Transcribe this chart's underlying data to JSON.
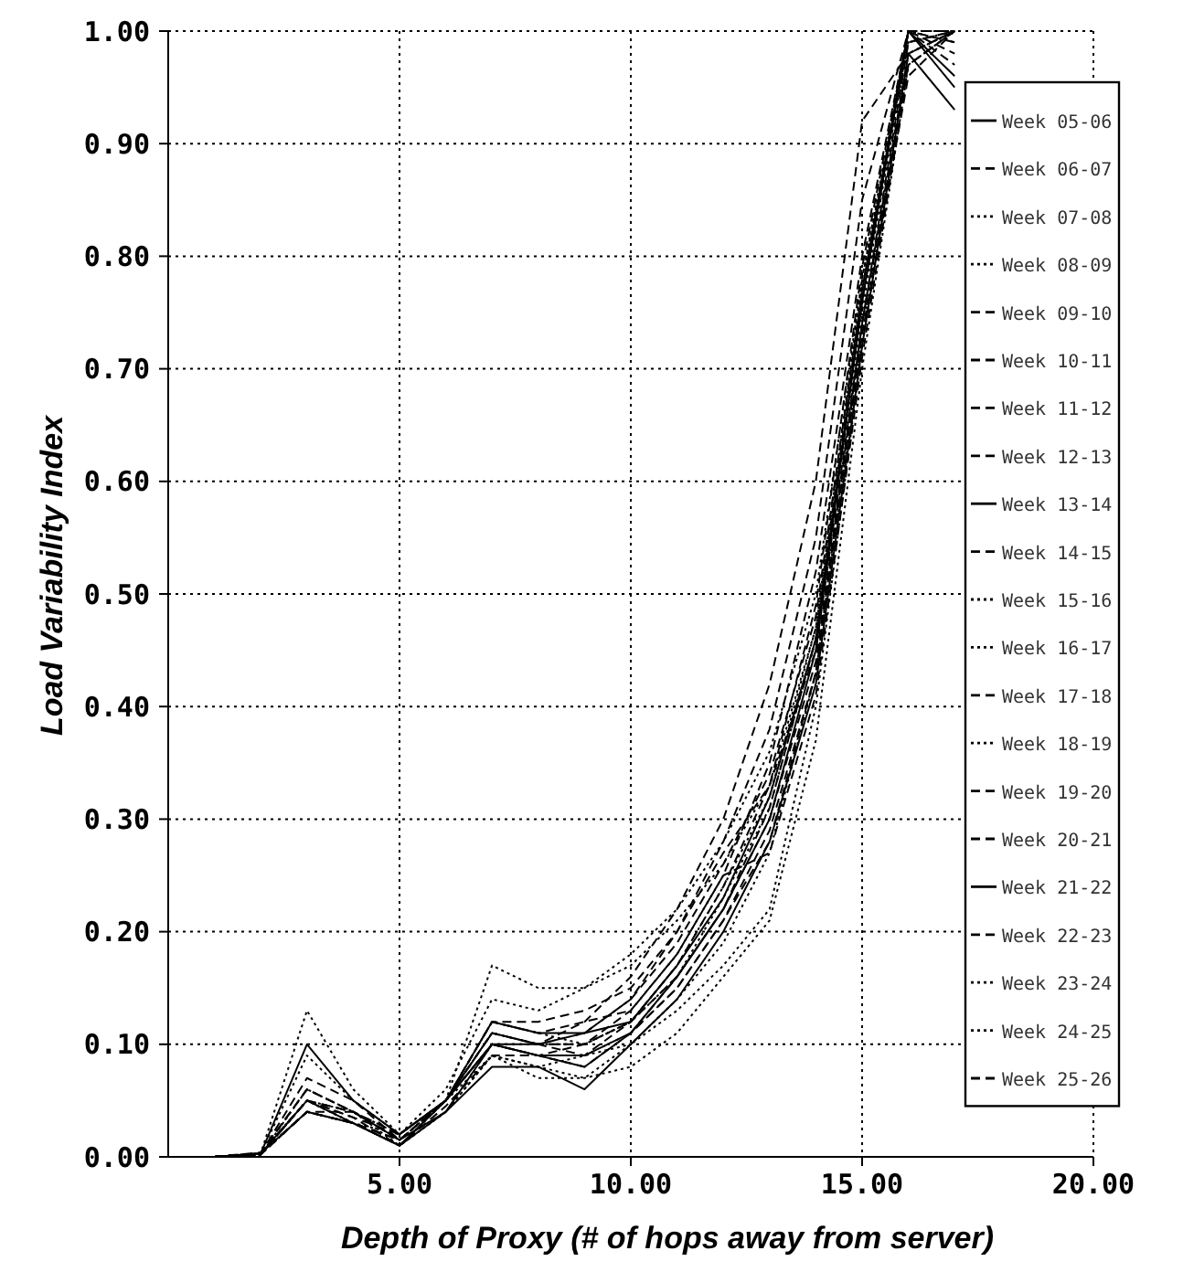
{
  "chart_data": {
    "type": "line",
    "xlabel": "Depth of Proxy (# of hops away from server)",
    "ylabel": "Load Variability Index",
    "x": [
      1,
      2,
      3,
      4,
      5,
      6,
      7,
      8,
      9,
      10,
      11,
      12,
      13,
      14,
      15,
      16,
      17
    ],
    "xlim": [
      0,
      20
    ],
    "xticks": [
      {
        "value": 5,
        "label": "5.00"
      },
      {
        "value": 10,
        "label": "10.00"
      },
      {
        "value": 15,
        "label": "15.00"
      },
      {
        "value": 20,
        "label": "20.00"
      }
    ],
    "ylim": [
      0,
      1
    ],
    "yticks": [
      {
        "value": 0,
        "label": "0.00"
      },
      {
        "value": 0.1,
        "label": "0.10"
      },
      {
        "value": 0.2,
        "label": "0.20"
      },
      {
        "value": 0.3,
        "label": "0.30"
      },
      {
        "value": 0.4,
        "label": "0.40"
      },
      {
        "value": 0.5,
        "label": "0.50"
      },
      {
        "value": 0.6,
        "label": "0.60"
      },
      {
        "value": 0.7,
        "label": "0.70"
      },
      {
        "value": 0.8,
        "label": "0.80"
      },
      {
        "value": 0.9,
        "label": "0.90"
      },
      {
        "value": 1,
        "label": "1.00"
      }
    ],
    "grid": true,
    "legend": "right",
    "marker": "none",
    "series": [
      {
        "name": "Week 05-06",
        "color": "#000000",
        "line_style": "solid",
        "values": [
          0,
          0.003,
          0.1,
          0.05,
          0.02,
          0.05,
          0.12,
          0.11,
          0.11,
          0.12,
          0.17,
          0.23,
          0.32,
          0.46,
          0.76,
          1.0,
          0.96
        ]
      },
      {
        "name": "Week 06-07",
        "color": "#000000",
        "line_style": "dashed",
        "values": [
          0,
          0.004,
          0.06,
          0.04,
          0.015,
          0.04,
          0.1,
          0.09,
          0.1,
          0.13,
          0.18,
          0.25,
          0.35,
          0.52,
          0.8,
          1.0,
          1.0
        ]
      },
      {
        "name": "Week 07-08",
        "color": "#000000",
        "line_style": "dotted",
        "values": [
          0,
          0.003,
          0.13,
          0.06,
          0.02,
          0.05,
          0.17,
          0.15,
          0.15,
          0.18,
          0.22,
          0.28,
          0.36,
          0.5,
          0.78,
          1.0,
          0.99
        ]
      },
      {
        "name": "Week 08-09",
        "color": "#000000",
        "line_style": "dotted",
        "values": [
          0,
          0.002,
          0.05,
          0.03,
          0.01,
          0.04,
          0.09,
          0.08,
          0.07,
          0.1,
          0.13,
          0.17,
          0.22,
          0.4,
          0.72,
          0.98,
          1.0
        ]
      },
      {
        "name": "Week 09-10",
        "color": "#000000",
        "line_style": "dashed",
        "values": [
          0,
          0.003,
          0.04,
          0.03,
          0.015,
          0.05,
          0.11,
          0.1,
          0.09,
          0.12,
          0.16,
          0.22,
          0.3,
          0.44,
          0.74,
          0.97,
          1.0
        ]
      },
      {
        "name": "Week 10-11",
        "color": "#000000",
        "line_style": "dashed",
        "values": [
          0,
          0.003,
          0.05,
          0.035,
          0.02,
          0.05,
          0.1,
          0.1,
          0.11,
          0.14,
          0.19,
          0.26,
          0.34,
          0.48,
          0.77,
          1.0,
          0.98
        ]
      },
      {
        "name": "Week 11-12",
        "color": "#000000",
        "line_style": "dashed",
        "values": [
          0,
          0.002,
          0.04,
          0.03,
          0.01,
          0.045,
          0.09,
          0.09,
          0.08,
          0.11,
          0.15,
          0.21,
          0.29,
          0.43,
          0.73,
          0.96,
          1.0
        ]
      },
      {
        "name": "Week 12-13",
        "color": "#000000",
        "line_style": "dashed",
        "values": [
          0,
          0.003,
          0.05,
          0.04,
          0.02,
          0.05,
          0.11,
          0.1,
          0.12,
          0.16,
          0.22,
          0.3,
          0.42,
          0.6,
          0.92,
          0.98,
          1.0
        ]
      },
      {
        "name": "Week 13-14",
        "color": "#000000",
        "line_style": "solid",
        "values": [
          0,
          0.003,
          0.04,
          0.03,
          0.01,
          0.04,
          0.08,
          0.08,
          0.06,
          0.1,
          0.14,
          0.2,
          0.28,
          0.42,
          0.72,
          0.98,
          0.93
        ]
      },
      {
        "name": "Week 14-15",
        "color": "#000000",
        "line_style": "dashed",
        "values": [
          0,
          0.003,
          0.07,
          0.05,
          0.015,
          0.05,
          0.12,
          0.12,
          0.13,
          0.15,
          0.2,
          0.27,
          0.33,
          0.45,
          0.74,
          0.99,
          1.0
        ]
      },
      {
        "name": "Week 15-16",
        "color": "#000000",
        "line_style": "dotted",
        "values": [
          0,
          0.002,
          0.06,
          0.04,
          0.01,
          0.05,
          0.09,
          0.07,
          0.07,
          0.08,
          0.11,
          0.16,
          0.21,
          0.37,
          0.7,
          0.97,
          1.0
        ]
      },
      {
        "name": "Week 16-17",
        "color": "#000000",
        "line_style": "dotted",
        "values": [
          0,
          0.003,
          0.05,
          0.04,
          0.02,
          0.06,
          0.14,
          0.13,
          0.15,
          0.17,
          0.21,
          0.26,
          0.33,
          0.47,
          0.76,
          0.99,
          1.0
        ]
      },
      {
        "name": "Week 17-18",
        "color": "#000000",
        "line_style": "dashed",
        "values": [
          0,
          0.003,
          0.04,
          0.03,
          0.015,
          0.05,
          0.1,
          0.09,
          0.09,
          0.11,
          0.16,
          0.22,
          0.31,
          0.46,
          0.77,
          1.0,
          0.99
        ]
      },
      {
        "name": "Week 18-19",
        "color": "#000000",
        "line_style": "dotted",
        "values": [
          0,
          0.003,
          0.05,
          0.03,
          0.02,
          0.05,
          0.11,
          0.1,
          0.1,
          0.12,
          0.17,
          0.24,
          0.32,
          0.47,
          0.78,
          0.99,
          1.0
        ]
      },
      {
        "name": "Week 19-20",
        "color": "#000000",
        "line_style": "dashed",
        "values": [
          0,
          0.003,
          0.04,
          0.04,
          0.015,
          0.04,
          0.1,
          0.09,
          0.09,
          0.11,
          0.15,
          0.21,
          0.28,
          0.43,
          0.74,
          0.98,
          1.0
        ]
      },
      {
        "name": "Week 20-21",
        "color": "#000000",
        "line_style": "dashed",
        "values": [
          0,
          0.002,
          0.05,
          0.035,
          0.01,
          0.05,
          0.11,
          0.1,
          0.11,
          0.14,
          0.2,
          0.28,
          0.38,
          0.55,
          0.85,
          1.0,
          1.0
        ]
      },
      {
        "name": "Week 21-22",
        "color": "#000000",
        "line_style": "solid",
        "values": [
          0,
          0.003,
          0.05,
          0.03,
          0.01,
          0.05,
          0.1,
          0.09,
          0.08,
          0.11,
          0.16,
          0.22,
          0.3,
          0.45,
          0.76,
          1.0,
          0.95
        ]
      },
      {
        "name": "Week 22-23",
        "color": "#000000",
        "line_style": "dashed",
        "values": [
          0,
          0.003,
          0.06,
          0.04,
          0.015,
          0.05,
          0.12,
          0.11,
          0.12,
          0.13,
          0.18,
          0.25,
          0.27,
          0.41,
          0.71,
          0.97,
          1.0
        ]
      },
      {
        "name": "Week 23-24",
        "color": "#000000",
        "line_style": "dotted",
        "values": [
          0,
          0.002,
          0.04,
          0.03,
          0.01,
          0.04,
          0.09,
          0.08,
          0.09,
          0.1,
          0.14,
          0.19,
          0.27,
          0.43,
          0.73,
          0.98,
          1.0
        ]
      },
      {
        "name": "Week 24-25",
        "color": "#000000",
        "line_style": "dotted",
        "values": [
          0,
          0.003,
          0.09,
          0.05,
          0.02,
          0.05,
          0.12,
          0.11,
          0.1,
          0.12,
          0.16,
          0.23,
          0.31,
          0.46,
          0.75,
          1.0,
          1.0
        ]
      },
      {
        "name": "Week 25-26",
        "color": "#000000",
        "line_style": "dashed",
        "values": [
          0,
          0.003,
          0.05,
          0.04,
          0.015,
          0.05,
          0.1,
          0.1,
          0.1,
          0.12,
          0.17,
          0.24,
          0.33,
          0.49,
          0.79,
          1.0,
          0.97
        ]
      }
    ]
  }
}
